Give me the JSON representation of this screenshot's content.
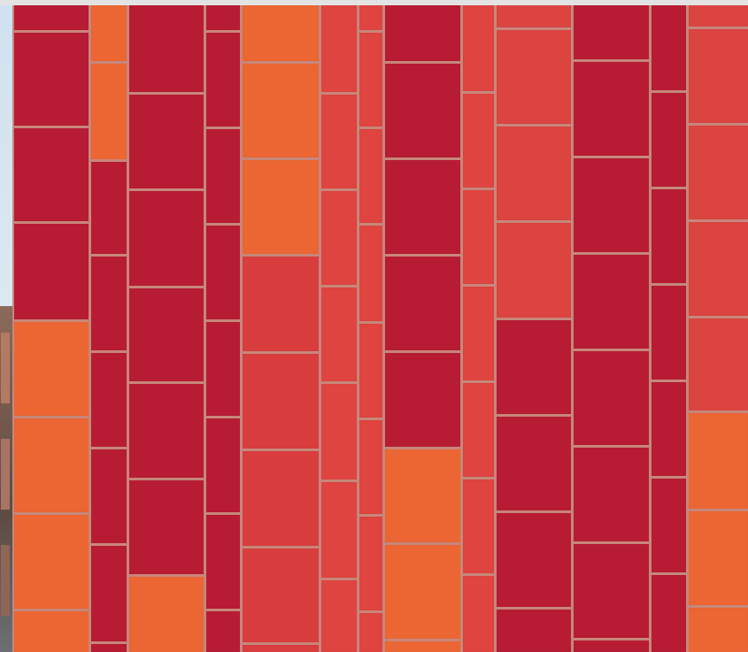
{
  "palette": {
    "crimson": "#b81c34",
    "orange": "#ec6633",
    "red": "#d93d3e",
    "bright_red": "#df4440",
    "light_red": "#dc4442",
    "mortar": "#c7877b"
  }
}
